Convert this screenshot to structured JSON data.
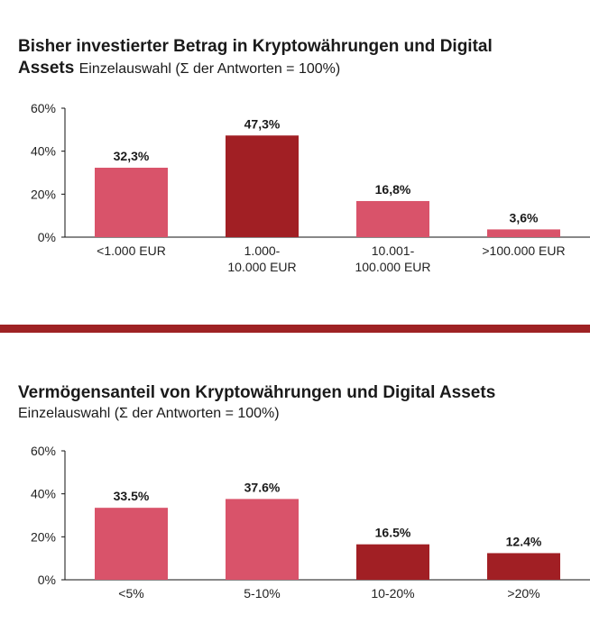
{
  "chart_data": [
    {
      "type": "bar",
      "title": "Bisher investierter Betrag in Kryptowährungen und Digital",
      "title_line2": "Assets",
      "subtitle": "Einzelauswahl (Σ der Antworten = 100%)",
      "xlabel": "",
      "ylabel": "",
      "ylim": [
        0,
        60
      ],
      "yticks": [
        "0%",
        "20%",
        "40%",
        "60%"
      ],
      "ytick_values": [
        0,
        20,
        40,
        60
      ],
      "grid": false,
      "categories": [
        [
          "<1.000 EUR"
        ],
        [
          "1.000-",
          "10.000 EUR"
        ],
        [
          "10.001-",
          "100.000 EUR"
        ],
        [
          ">100.000 EUR"
        ]
      ],
      "values": [
        32.3,
        47.3,
        16.8,
        3.6
      ],
      "value_labels": [
        "32,3%",
        "47,3%",
        "16,8%",
        "3,6%"
      ],
      "bar_colors": [
        "#d9536a",
        "#a11f24",
        "#d9536a",
        "#d9536a"
      ]
    },
    {
      "type": "bar",
      "title": "Vermögensanteil von Kryptowährungen und Digital Assets",
      "subtitle": "Einzelauswahl (Σ der Antworten = 100%)",
      "xlabel": "",
      "ylabel": "",
      "ylim": [
        0,
        60
      ],
      "yticks": [
        "0%",
        "20%",
        "40%",
        "60%"
      ],
      "ytick_values": [
        0,
        20,
        40,
        60
      ],
      "grid": false,
      "categories": [
        [
          "<5%"
        ],
        [
          "5-10%"
        ],
        [
          "10-20%"
        ],
        [
          ">20%"
        ]
      ],
      "values": [
        33.5,
        37.6,
        16.5,
        12.4
      ],
      "value_labels": [
        "33.5%",
        "37.6%",
        "16.5%",
        "12.4%"
      ],
      "bar_colors": [
        "#d9536a",
        "#d9536a",
        "#a11f24",
        "#a11f24"
      ]
    }
  ],
  "divider_color": "#9e2224"
}
